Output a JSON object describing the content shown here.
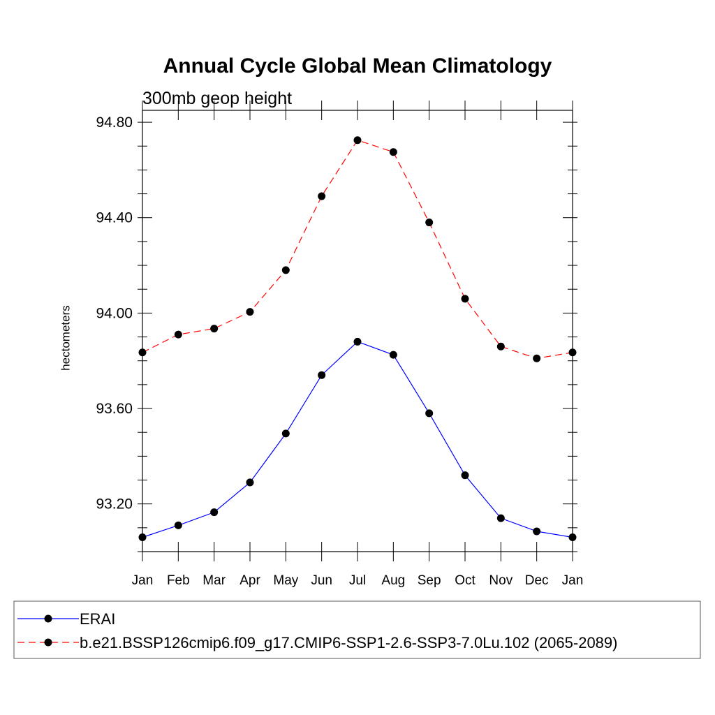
{
  "colors": {
    "erai": "#0000ff",
    "ssp": "#ff0000",
    "marker": "#000000",
    "axis": "#000000"
  },
  "chart_data": {
    "type": "line",
    "title": "Annual Cycle Global Mean Climatology",
    "subtitle": "300mb geop height",
    "xlabel": "",
    "ylabel": "hectometers",
    "categories": [
      "Jan",
      "Feb",
      "Mar",
      "Apr",
      "May",
      "Jun",
      "Jul",
      "Aug",
      "Sep",
      "Oct",
      "Nov",
      "Dec",
      "Jan"
    ],
    "ylim": [
      93.0,
      94.85
    ],
    "yticks": [
      93.2,
      93.6,
      94.0,
      94.4,
      94.8
    ],
    "ytick_labels": [
      "93.20",
      "93.60",
      "94.00",
      "94.40",
      "94.80"
    ],
    "grid": false,
    "legend_position": "bottom",
    "series": [
      {
        "name": "ERAI",
        "style": "solid",
        "color": "#0000ff",
        "values": [
          93.06,
          93.11,
          93.165,
          93.29,
          93.495,
          93.74,
          93.88,
          93.825,
          93.58,
          93.32,
          93.14,
          93.085,
          93.06
        ]
      },
      {
        "name": "b.e21.BSSP126cmip6.f09_g17.CMIP6-SSP1-2.6-SSP3-7.0Lu.102 (2065-2089)",
        "style": "dashed",
        "color": "#ff0000",
        "values": [
          93.835,
          93.91,
          93.935,
          94.005,
          94.18,
          94.49,
          94.725,
          94.675,
          94.38,
          94.06,
          93.86,
          93.81,
          93.835
        ]
      }
    ]
  }
}
